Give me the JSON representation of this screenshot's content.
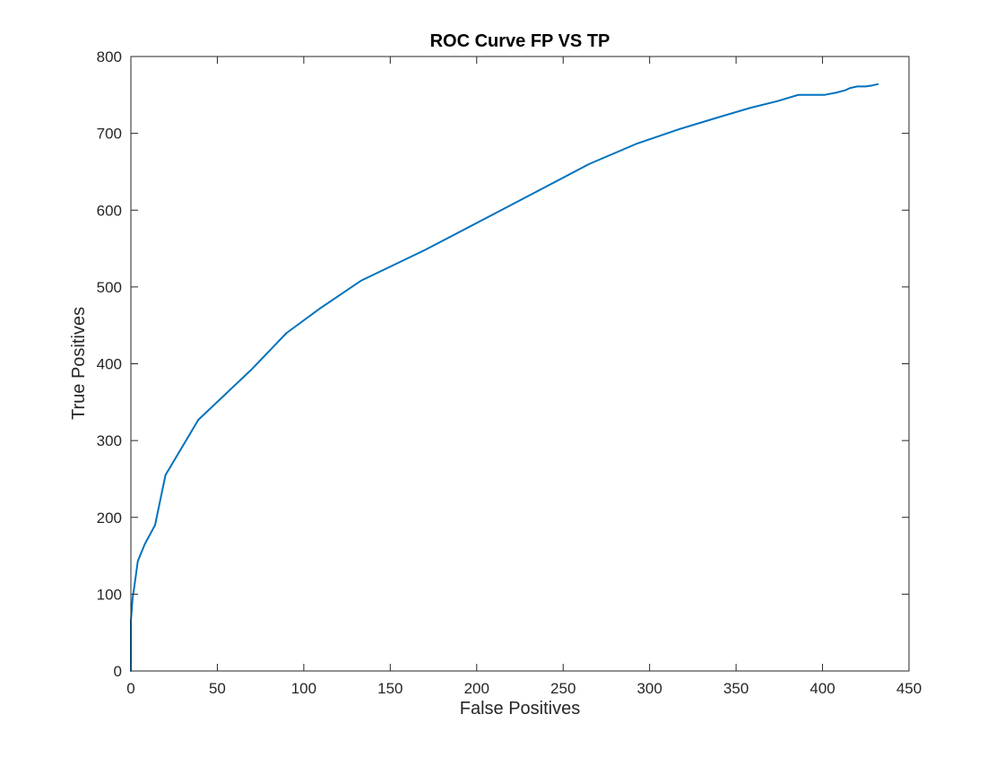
{
  "chart_data": {
    "type": "line",
    "title": "ROC Curve FP VS TP",
    "xlabel": "False Positives",
    "ylabel": "True Positives",
    "xlim": [
      0,
      450
    ],
    "ylim": [
      0,
      800
    ],
    "xticks": [
      0,
      50,
      100,
      150,
      200,
      250,
      300,
      350,
      400,
      450
    ],
    "yticks": [
      0,
      100,
      200,
      300,
      400,
      500,
      600,
      700,
      800
    ],
    "grid": false,
    "legend": "none",
    "series": [
      {
        "color": "#0072BD",
        "x": [
          0,
          0,
          0,
          1,
          2,
          4,
          8,
          14,
          20,
          39,
          70,
          90,
          110,
          133,
          170,
          210,
          265,
          292,
          318,
          340,
          358,
          374,
          386,
          393,
          401,
          408,
          413,
          416,
          420,
          425,
          428,
          432
        ],
        "y": [
          0,
          30,
          65,
          95,
          110,
          143,
          165,
          190,
          255,
          327,
          393,
          440,
          473,
          508,
          548,
          595,
          660,
          686,
          706,
          721,
          733,
          742,
          750,
          750,
          750,
          753,
          756,
          759,
          761,
          761,
          762,
          764
        ]
      }
    ]
  }
}
